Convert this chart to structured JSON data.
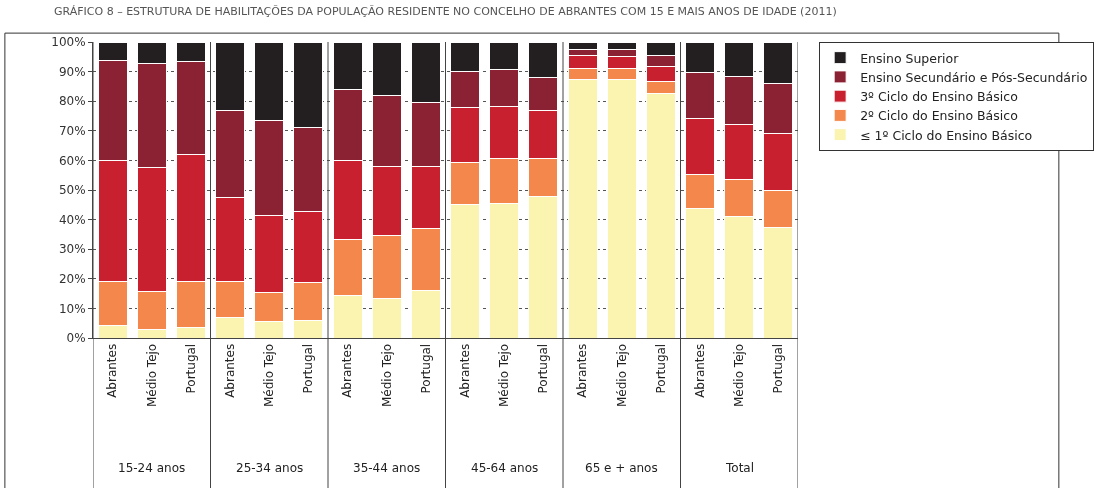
{
  "chart_data": {
    "type": "bar",
    "stacked": true,
    "title": "GRÁFICO 8 – ESTRUTURA DE HABILITAÇÕES DA POPULAÇÃO RESIDENTE NO CONCELHO DE ABRANTES COM 15 E MAIS ANOS DE IDADE (2011)",
    "categories": [
      "Abrantes",
      "Médio Tejo",
      "Portugal",
      "Abrantes",
      "Médio Tejo",
      "Portugal",
      "Abrantes",
      "Médio Tejo",
      "Portugal",
      "Abrantes",
      "Médio Tejo",
      "Portugal",
      "Abrantes",
      "Médio Tejo",
      "Portugal",
      "Abrantes",
      "Médio Tejo",
      "Portugal"
    ],
    "annotations": [
      "15-24 anos",
      "25-34 anos",
      "35-44 anos",
      "45-64 anos",
      "65 e + anos",
      "Total"
    ],
    "series": [
      {
        "name": "≤ 1º Ciclo do Ensino Básico",
        "color": "#fbf3b0",
        "values": [
          4.2,
          3.0,
          3.6,
          6.8,
          5.6,
          6.0,
          14.4,
          13.4,
          15.9,
          45.0,
          45.6,
          47.8,
          87.5,
          87.5,
          82.5,
          43.6,
          41.1,
          37.4
        ]
      },
      {
        "name": "2º Ciclo do Ensino Básico",
        "color": "#f4874b",
        "values": [
          15.0,
          12.6,
          15.4,
          12.2,
          9.7,
          12.6,
          18.8,
          21.1,
          21.2,
          14.2,
          15.1,
          12.9,
          3.6,
          3.4,
          4.2,
          11.7,
          12.3,
          12.4
        ]
      },
      {
        "name": "3º Ciclo do Ensino Básico",
        "color": "#c8202f",
        "values": [
          40.6,
          42.0,
          43.1,
          28.3,
          26.0,
          24.0,
          26.6,
          23.4,
          20.8,
          18.8,
          17.6,
          16.2,
          4.3,
          4.1,
          5.0,
          19.0,
          18.8,
          19.3
        ]
      },
      {
        "name": "Ensino Secundário e Pós-Secundário",
        "color": "#8b2233",
        "values": [
          33.8,
          35.0,
          31.4,
          29.5,
          32.2,
          28.5,
          24.0,
          23.9,
          21.7,
          12.0,
          12.4,
          11.2,
          2.2,
          2.6,
          3.9,
          15.5,
          16.2,
          17.0
        ]
      },
      {
        "name": "Ensino Superior",
        "color": "#231f20",
        "values": [
          6.4,
          7.4,
          6.5,
          23.2,
          26.5,
          28.9,
          16.2,
          18.2,
          20.4,
          10.0,
          9.3,
          11.9,
          2.4,
          2.4,
          4.4,
          10.2,
          11.6,
          13.9
        ]
      }
    ],
    "ylim": [
      0,
      100
    ],
    "yticks": [
      {
        "value": 0,
        "label": "0%"
      },
      {
        "value": 10,
        "label": "10%"
      },
      {
        "value": 20,
        "label": "20%"
      },
      {
        "value": 30,
        "label": "30%"
      },
      {
        "value": 40,
        "label": "40%"
      },
      {
        "value": 50,
        "label": "50%"
      },
      {
        "value": 60,
        "label": "60%"
      },
      {
        "value": 70,
        "label": "70%"
      },
      {
        "value": 80,
        "label": "80%"
      },
      {
        "value": 90,
        "label": "90%"
      },
      {
        "value": 100,
        "label": "100%"
      }
    ],
    "grid": "y",
    "legend": "right"
  }
}
